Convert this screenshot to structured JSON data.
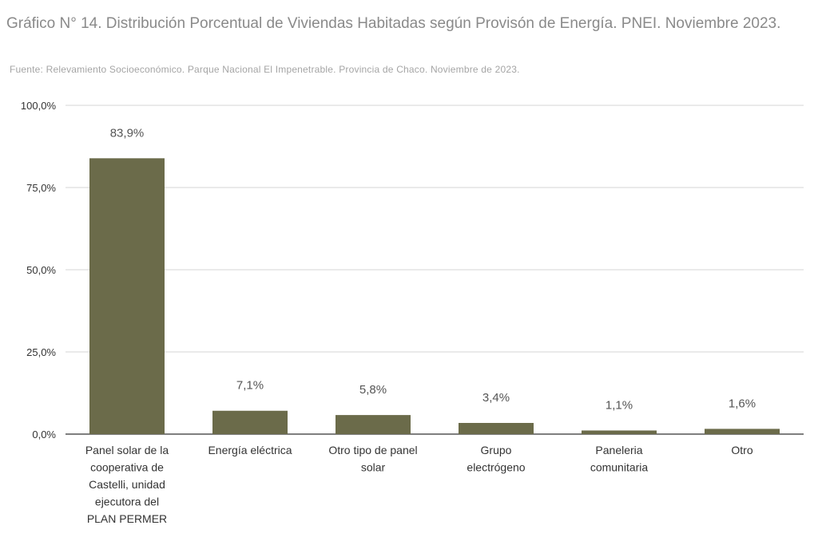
{
  "header": {
    "title": "Gráfico N° 14. Distribución Porcentual de Viviendas Habitadas según Provisón de Energía. PNEI. Noviembre 2023.",
    "source": "Fuente:  Relevamiento Socioeconómico.  Parque Nacional El Impenetrable. Provincia de Chaco. Noviembre de 2023."
  },
  "colors": {
    "bar": "#6b6b4a",
    "grid": "#d6d6d6",
    "axis": "#333333"
  },
  "chart_data": {
    "type": "bar",
    "title": "Gráfico N° 14. Distribución Porcentual de Viviendas Habitadas según Provisón de Energía. PNEI. Noviembre 2023.",
    "categories": [
      [
        "Panel solar de la",
        "cooperativa de",
        "Castelli, unidad",
        "ejecutora del",
        "PLAN PERMER"
      ],
      [
        "Energía eléctrica"
      ],
      [
        "Otro tipo de panel",
        "solar"
      ],
      [
        "Grupo",
        "electrógeno"
      ],
      [
        "Paneleria",
        "comunitaria"
      ],
      [
        "Otro"
      ]
    ],
    "values": [
      83.9,
      7.1,
      5.8,
      3.4,
      1.1,
      1.6
    ],
    "value_labels": [
      "83,9%",
      "7,1%",
      "5,8%",
      "3,4%",
      "1,1%",
      "1,6%"
    ],
    "ylim": [
      0,
      100
    ],
    "yticks": [
      0,
      25,
      50,
      75,
      100
    ],
    "ytick_labels": [
      "0,0%",
      "25,0%",
      "50,0%",
      "75,0%",
      "100,0%"
    ],
    "grid": true,
    "legend": "none"
  }
}
